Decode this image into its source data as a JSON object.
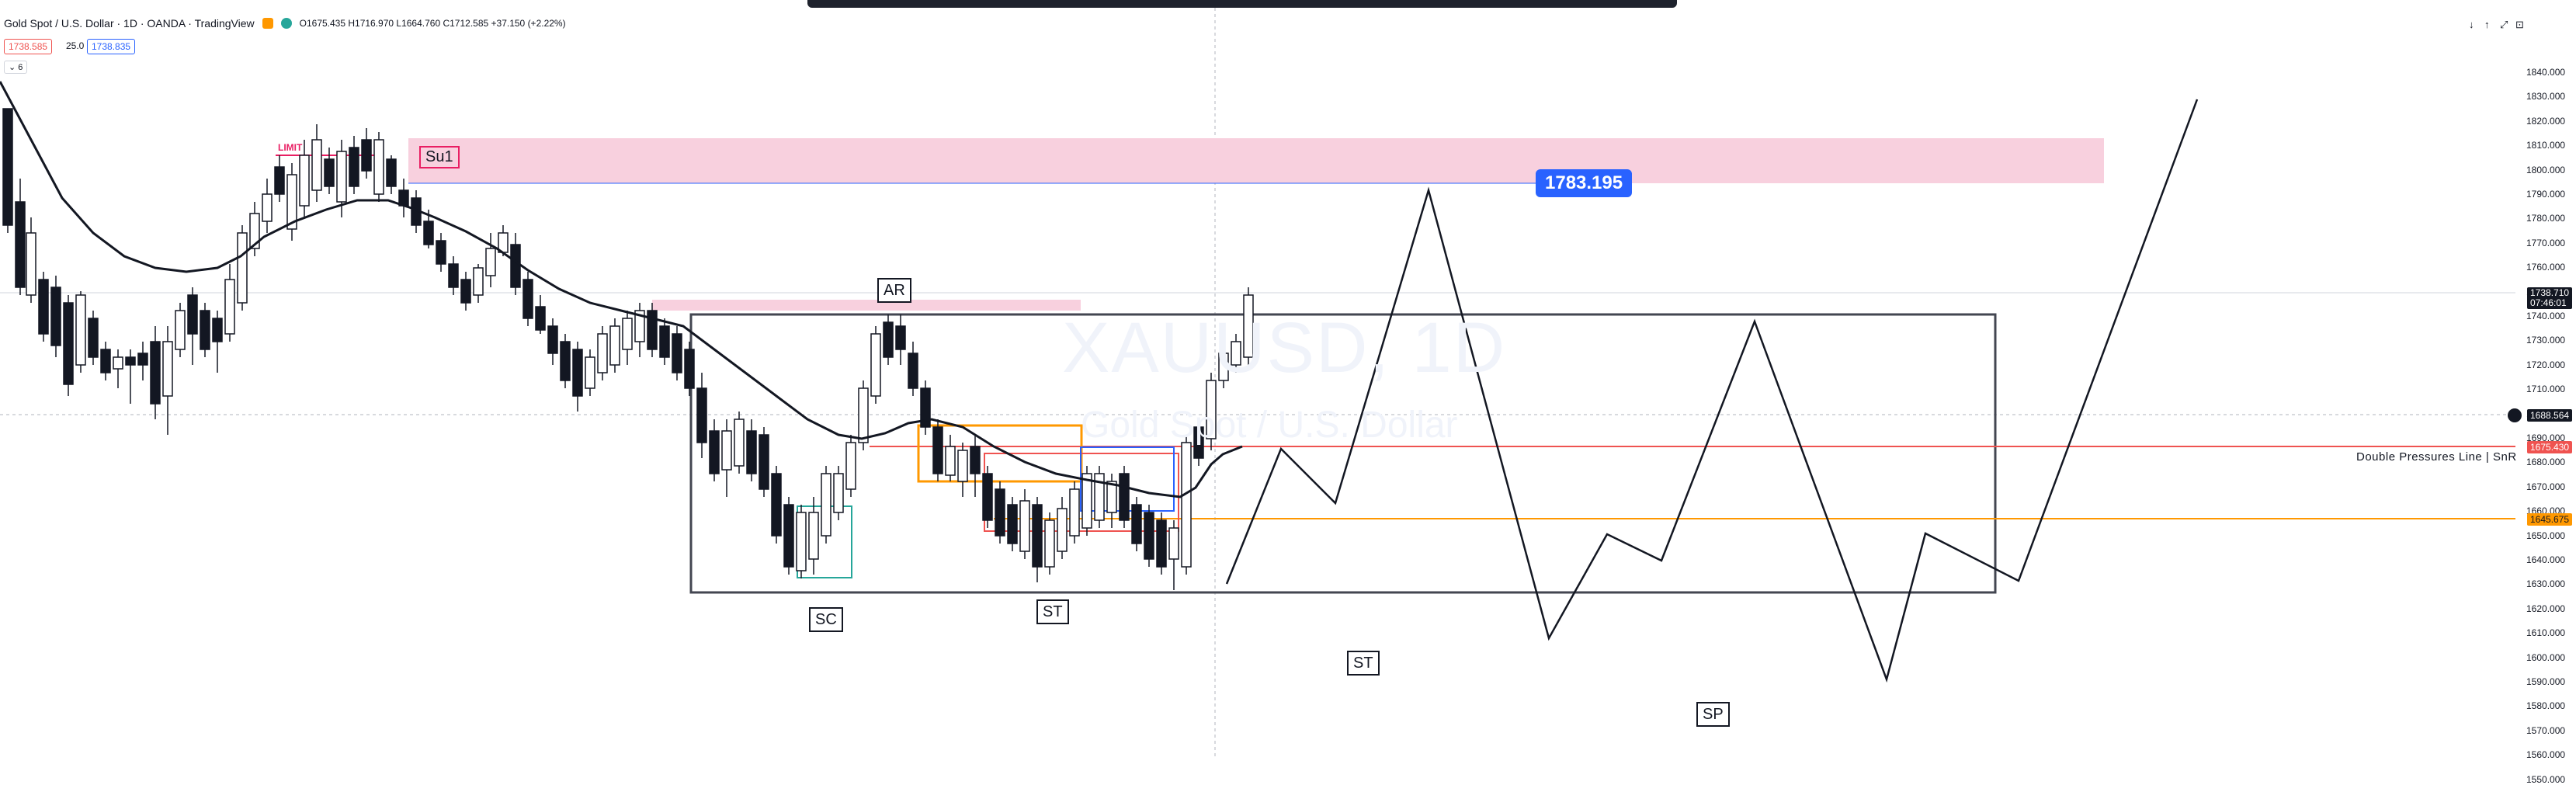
{
  "header": {
    "title": "Gold Spot / U.S. Dollar · 1D · OANDA · TradingView",
    "ohlc": "O1675.435 H1716.970 L1664.760 C1712.585 +37.150 (+2.22%)"
  },
  "quote": {
    "sell": "1738.585",
    "spread": "25.0",
    "buy": "1738.835"
  },
  "indicator_toggle": "6",
  "watermark": {
    "symbol": "XAUUSD, 1D",
    "description": "Gold Spot / U.S. Dollar"
  },
  "labels": {
    "su1": "Su1",
    "limit": "LIMIT",
    "ar": "AR",
    "sc": "SC",
    "st1": "ST",
    "st2": "ST",
    "sp": "SP",
    "bubble": "1783.195",
    "double_pressures": "Double Pressures Line | SnR"
  },
  "price_scale": [
    "1840.000",
    "1830.000",
    "1820.000",
    "1810.000",
    "1800.000",
    "1790.000",
    "1780.000",
    "1770.000",
    "1760.000",
    "1750.000",
    "1740.000",
    "1730.000",
    "1720.000",
    "1710.000",
    "1700.000",
    "1690.000",
    "1680.000",
    "1670.000",
    "1660.000",
    "1650.000",
    "1640.000",
    "1630.000",
    "1620.000",
    "1610.000",
    "1600.000",
    "1590.000",
    "1580.000",
    "1570.000",
    "1560.000",
    "1550.000"
  ],
  "price_tags": {
    "current_price": "1738.710",
    "countdown": "07:46:01",
    "crosshair": "1688.564",
    "red_line": "1675.430",
    "orange_line": "1645.675"
  },
  "top_right_controls": [
    "↓",
    "↑",
    "⤢",
    "⊡"
  ],
  "colors": {
    "zone_pink": "#f8d0de",
    "bull": "#ffffff",
    "bear": "#131722",
    "red_line": "#ef5350",
    "orange_line": "#ff9800",
    "bubble": "#2962ff"
  },
  "icons": [
    "settings-icon",
    "eye-icon"
  ]
}
